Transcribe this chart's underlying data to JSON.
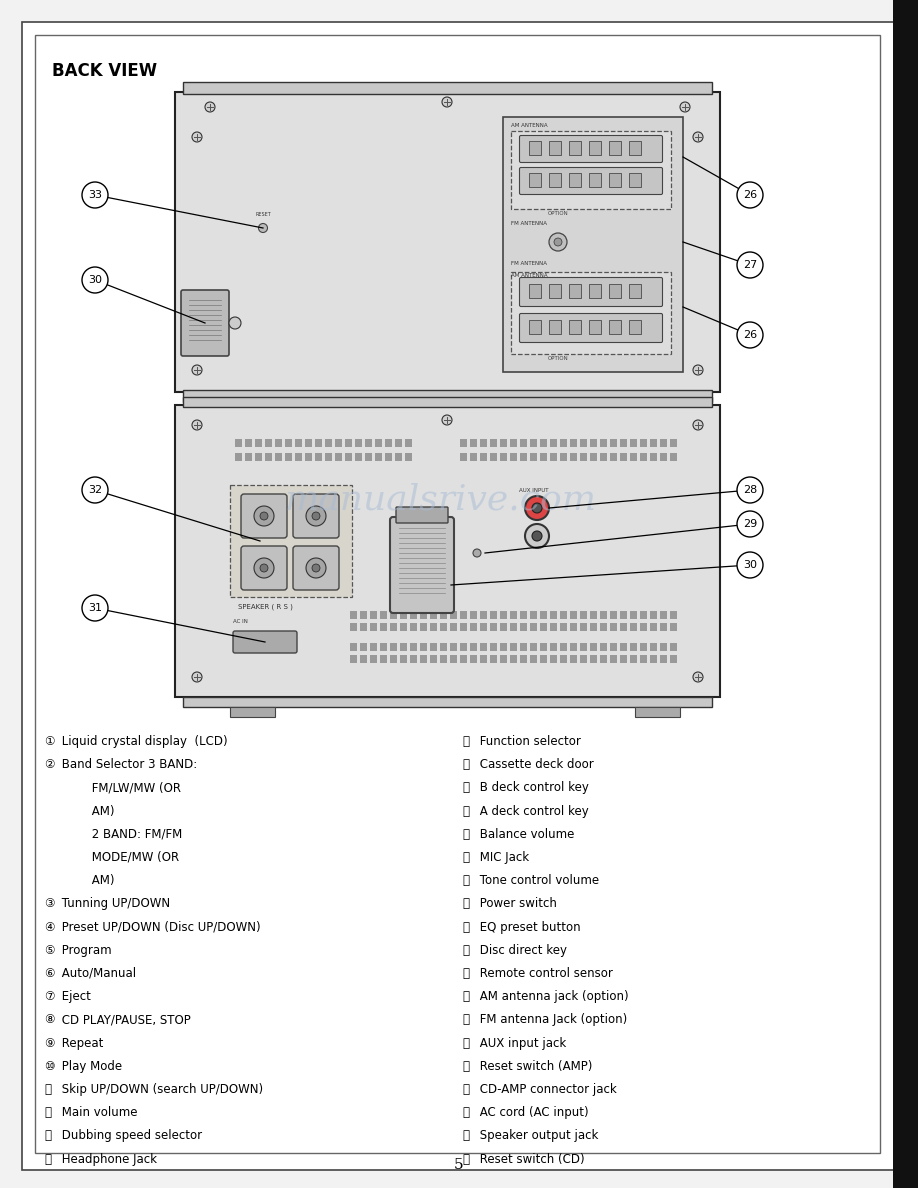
{
  "title": "BACK VIEW",
  "page_number": "5",
  "bg_color": "#f2f2f2",
  "page_bg": "#ffffff",
  "watermark_text": "manualsrive.com",
  "watermark_color": "#a8bcd4",
  "left_items": [
    [
      "①",
      " Liquid crystal display  (LCD)"
    ],
    [
      "②",
      " Band Selector 3 BAND:"
    ],
    [
      "",
      "         FM/LW/MW (OR"
    ],
    [
      "",
      "         AM)"
    ],
    [
      "",
      "         2 BAND: FM/FM"
    ],
    [
      "",
      "         MODE/MW (OR"
    ],
    [
      "",
      "         AM)"
    ],
    [
      "③",
      " Tunning UP/DOWN"
    ],
    [
      "④",
      " Preset UP/DOWN (Disc UP/DOWN)"
    ],
    [
      "⑤",
      " Program"
    ],
    [
      "⑥",
      " Auto/Manual"
    ],
    [
      "⑦",
      " Eject"
    ],
    [
      "⑧",
      " CD PLAY/PAUSE, STOP"
    ],
    [
      "⑨",
      " Repeat"
    ],
    [
      "⑩",
      " Play Mode"
    ],
    [
      "⑪",
      " Skip UP/DOWN (search UP/DOWN)"
    ],
    [
      "⑫",
      " Main volume"
    ],
    [
      "⑬",
      " Dubbing speed selector"
    ],
    [
      "⑭",
      " Headphone Jack"
    ]
  ],
  "right_items": [
    [
      "⑮",
      " Function selector"
    ],
    [
      "⑯",
      " Cassette deck door"
    ],
    [
      "⑰",
      " B deck control key"
    ],
    [
      "⑱",
      " A deck control key"
    ],
    [
      "⑲",
      " Balance volume"
    ],
    [
      "⑳",
      " MIC Jack"
    ],
    [
      "⑴",
      " Tone control volume"
    ],
    [
      "⑵",
      " Power switch"
    ],
    [
      "⑶",
      " EQ preset button"
    ],
    [
      "⑷",
      " Disc direct key"
    ],
    [
      "⑸",
      " Remote control sensor"
    ],
    [
      "⑹",
      " AM antenna jack (option)"
    ],
    [
      "⑺",
      " FM antenna Jack (option)"
    ],
    [
      "⑻",
      " AUX input jack"
    ],
    [
      "⑼",
      " Reset switch (AMP)"
    ],
    [
      "⑽",
      " CD-AMP connector jack"
    ],
    [
      "⑾",
      " AC cord (AC input)"
    ],
    [
      "⑿",
      " Speaker output jack"
    ],
    [
      "⒀",
      " Reset switch (CD)"
    ]
  ]
}
